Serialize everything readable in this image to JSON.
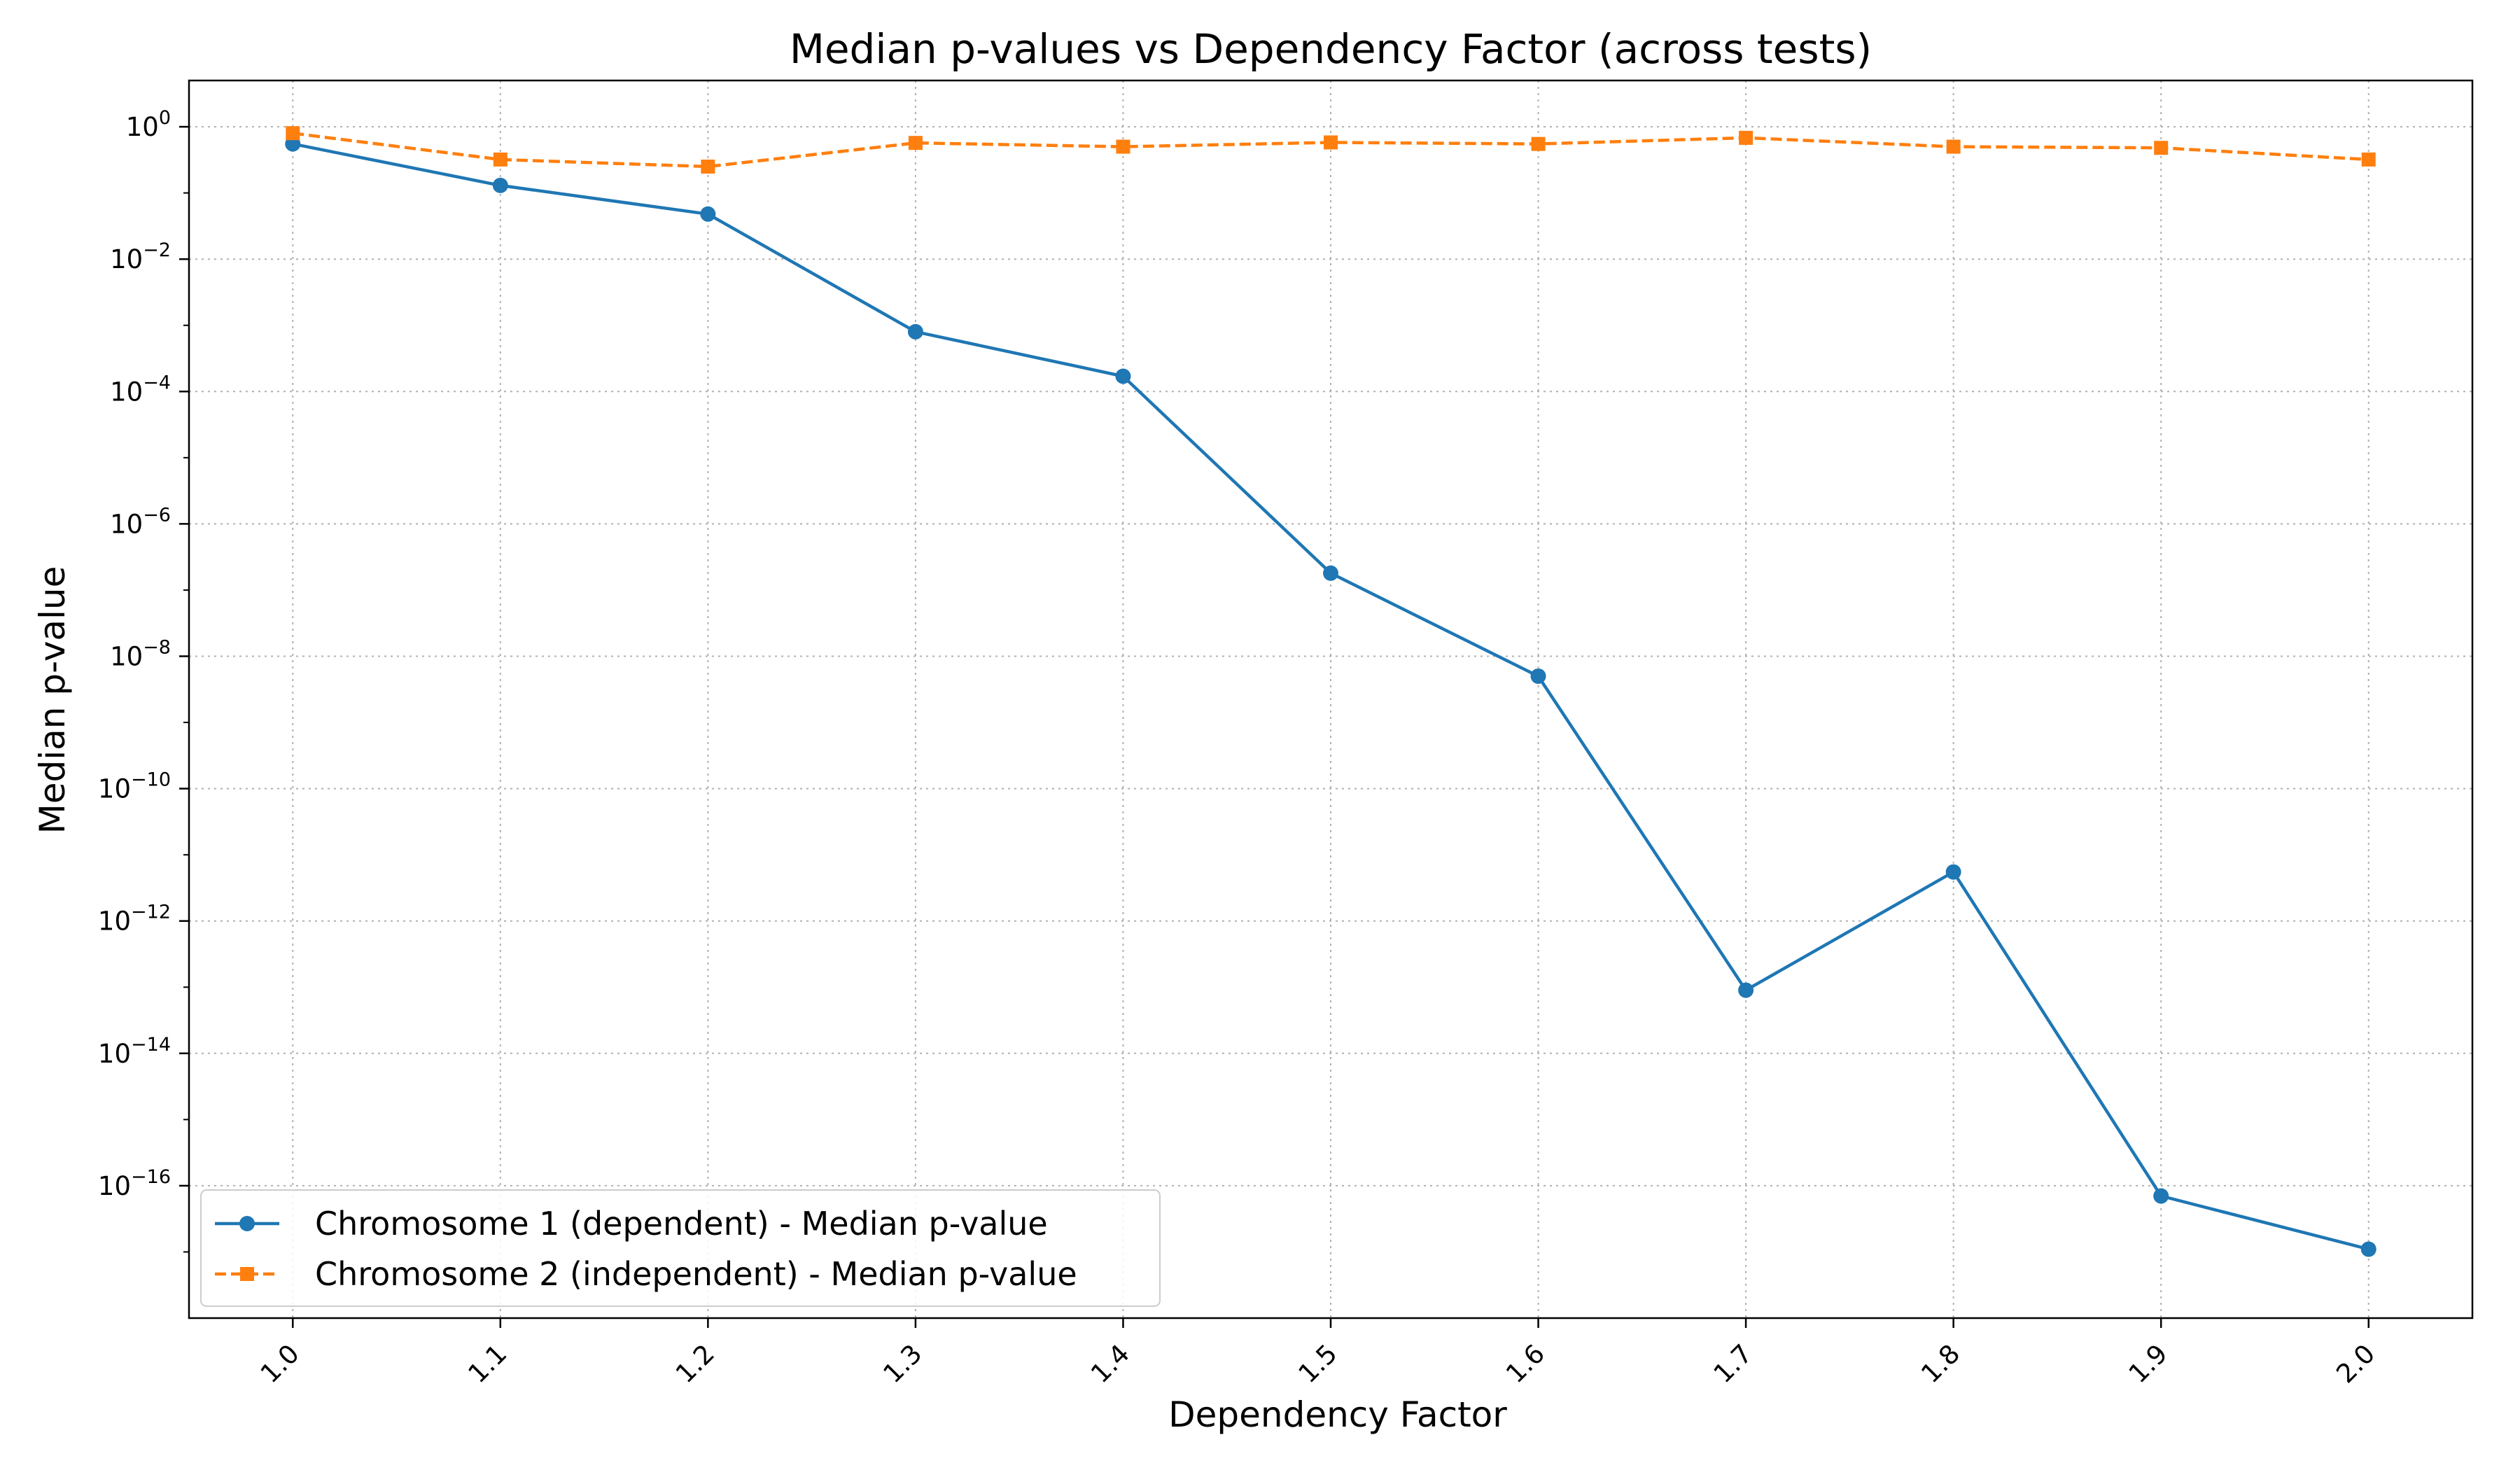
{
  "chart_data": {
    "type": "line",
    "title": "Median p-values vs Dependency Factor (across tests)",
    "xlabel": "Dependency Factor",
    "ylabel": "Median p-value",
    "x": [
      1.0,
      1.1,
      1.2,
      1.3,
      1.4,
      1.5,
      1.6,
      1.7,
      1.8,
      1.9,
      2.0
    ],
    "x_tick_labels": [
      "1.0",
      "1.1",
      "1.2",
      "1.3",
      "1.4",
      "1.5",
      "1.6",
      "1.7",
      "1.8",
      "1.9",
      "2.0"
    ],
    "xlim": [
      0.95,
      2.05
    ],
    "y_scale": "log",
    "ylim": [
      1e-18,
      5
    ],
    "y_ticks": [
      {
        "value": 1,
        "base": "10",
        "exp": "0"
      },
      {
        "value": 0.01,
        "base": "10",
        "exp": "−2"
      },
      {
        "value": 0.0001,
        "base": "10",
        "exp": "−4"
      },
      {
        "value": 1e-06,
        "base": "10",
        "exp": "−6"
      },
      {
        "value": 1e-08,
        "base": "10",
        "exp": "−8"
      },
      {
        "value": 1e-10,
        "base": "10",
        "exp": "−10"
      },
      {
        "value": 1e-12,
        "base": "10",
        "exp": "−12"
      },
      {
        "value": 1e-14,
        "base": "10",
        "exp": "−14"
      },
      {
        "value": 1e-16,
        "base": "10",
        "exp": "−16"
      }
    ],
    "grid": true,
    "legend_position": "lower-left",
    "series": [
      {
        "name": "Chromosome 1 (dependent) - Median p-value",
        "color": "#1f77b4",
        "marker": "circle",
        "linestyle": "solid",
        "values": [
          0.55,
          0.13,
          0.048,
          0.0008,
          0.00017,
          1.8e-07,
          5e-09,
          9e-14,
          5.5e-12,
          7e-17,
          1.1e-17
        ]
      },
      {
        "name": "Chromosome 2 (independent) - Median p-value",
        "color": "#ff7f0e",
        "marker": "square",
        "linestyle": "dashed",
        "values": [
          0.8,
          0.32,
          0.25,
          0.57,
          0.5,
          0.58,
          0.55,
          0.68,
          0.5,
          0.48,
          0.32
        ]
      }
    ]
  }
}
